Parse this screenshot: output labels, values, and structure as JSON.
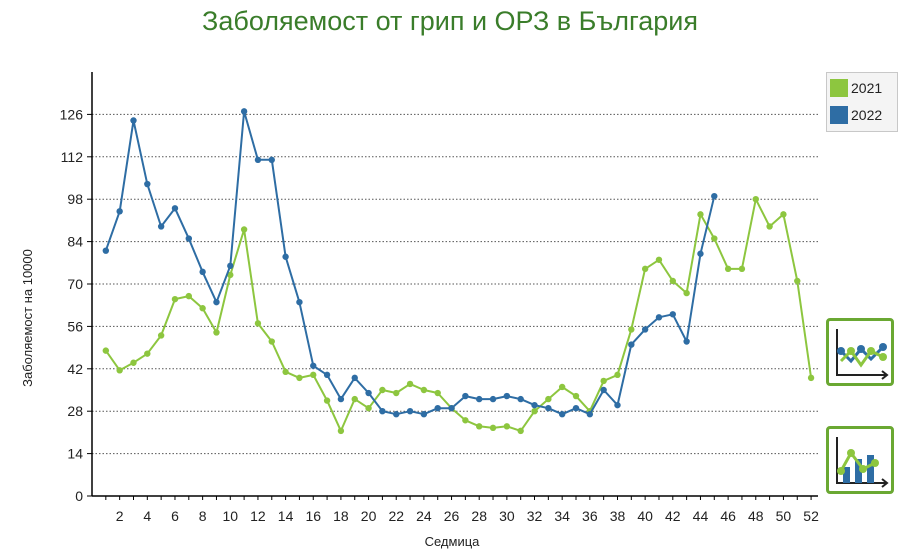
{
  "chart_data": {
    "type": "line",
    "title": "Заболяемост от грип и ОРЗ в България",
    "xlabel": "Седмица",
    "ylabel": "Заболяемост на 10000",
    "xlim": [
      0,
      52.5
    ],
    "ylim": [
      0,
      140
    ],
    "xticks": [
      2,
      4,
      6,
      8,
      10,
      12,
      14,
      16,
      18,
      20,
      22,
      24,
      26,
      28,
      30,
      32,
      34,
      36,
      38,
      40,
      42,
      44,
      46,
      48,
      50,
      52
    ],
    "yticks": [
      0,
      14,
      28,
      42,
      56,
      70,
      84,
      98,
      112,
      126
    ],
    "grid": "horizontal dotted",
    "legend_position": "right",
    "series": [
      {
        "name": "2021",
        "color": "#8dc63f",
        "x": [
          1,
          2,
          3,
          4,
          5,
          6,
          7,
          8,
          9,
          10,
          11,
          12,
          13,
          14,
          15,
          16,
          17,
          18,
          19,
          20,
          21,
          22,
          23,
          24,
          25,
          26,
          27,
          28,
          29,
          30,
          31,
          32,
          33,
          34,
          35,
          36,
          37,
          38,
          39,
          40,
          41,
          42,
          43,
          44,
          45,
          46,
          47,
          48,
          49,
          50,
          51,
          52
        ],
        "values": [
          48,
          41.5,
          44,
          47,
          53,
          65,
          66,
          62,
          54,
          73,
          88,
          57,
          51,
          41,
          39,
          40,
          31.5,
          21.5,
          32,
          29,
          35,
          34,
          37,
          35,
          34,
          29,
          25,
          23,
          22.5,
          23,
          21.5,
          28,
          32,
          36,
          33,
          28,
          38,
          40,
          55,
          75,
          78,
          71,
          67,
          93,
          85,
          75,
          75,
          98,
          89,
          93,
          71,
          39
        ]
      },
      {
        "name": "2022",
        "color": "#2e6da4",
        "x": [
          1,
          2,
          3,
          4,
          5,
          6,
          7,
          8,
          9,
          10,
          11,
          12,
          13,
          14,
          15,
          16,
          17,
          18,
          19,
          20,
          21,
          22,
          23,
          24,
          25,
          26,
          27,
          28,
          29,
          30,
          31,
          32,
          33,
          34,
          35,
          36,
          37,
          38,
          39,
          40,
          41,
          42,
          43,
          44,
          45
        ],
        "values": [
          81,
          94,
          124,
          103,
          89,
          95,
          85,
          74,
          64,
          76,
          127,
          111,
          111,
          79,
          64,
          43,
          40,
          32,
          39,
          34,
          28,
          27,
          28,
          27,
          29,
          29,
          33,
          32,
          32,
          33,
          32,
          30,
          29,
          27,
          29,
          27,
          35,
          30,
          50,
          55,
          59,
          60,
          51,
          80,
          99
        ]
      }
    ]
  },
  "view_buttons": [
    {
      "icon": "line-chart-icon"
    },
    {
      "icon": "bar-chart-icon"
    }
  ]
}
